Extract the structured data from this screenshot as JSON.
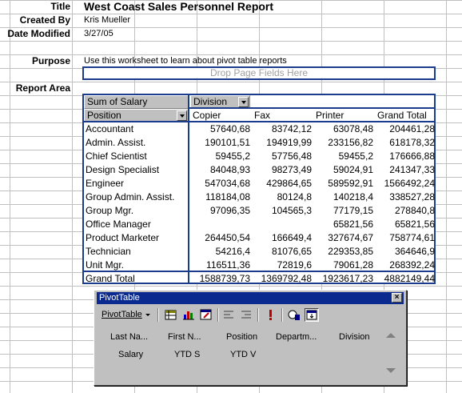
{
  "header": {
    "title_label": "Title",
    "title_value": "West Coast Sales Personnel Report",
    "created_by_label": "Created By",
    "created_by_value": "Kris Mueller",
    "date_modified_label": "Date Modified",
    "date_modified_value": "3/27/05",
    "purpose_label": "Purpose",
    "purpose_value": "Use this worksheet to learn about pivot table reports",
    "report_area_label": "Report Area"
  },
  "pivot": {
    "drop_page_text": "Drop Page Fields Here",
    "data_field": "Sum of Salary",
    "column_field": "Division",
    "row_field": "Position",
    "columns": [
      "Copier",
      "Fax",
      "Printer",
      "Grand Total"
    ],
    "rows": [
      {
        "label": "Accountant",
        "values": [
          "57640,68",
          "83742,12",
          "63078,48",
          "204461,28"
        ]
      },
      {
        "label": "Admin. Assist.",
        "values": [
          "190101,51",
          "194919,99",
          "233156,82",
          "618178,32"
        ]
      },
      {
        "label": "Chief Scientist",
        "values": [
          "59455,2",
          "57756,48",
          "59455,2",
          "176666,88"
        ]
      },
      {
        "label": "Design Specialist",
        "values": [
          "84048,93",
          "98273,49",
          "59024,91",
          "241347,33"
        ]
      },
      {
        "label": "Engineer",
        "values": [
          "547034,68",
          "429864,65",
          "589592,91",
          "1566492,24"
        ]
      },
      {
        "label": "Group Admin. Assist.",
        "values": [
          "118184,08",
          "80124,8",
          "140218,4",
          "338527,28"
        ]
      },
      {
        "label": "Group Mgr.",
        "values": [
          "97096,35",
          "104565,3",
          "77179,15",
          "278840,8"
        ]
      },
      {
        "label": "Office Manager",
        "values": [
          "",
          "",
          "65821,56",
          "65821,56"
        ]
      },
      {
        "label": "Product Marketer",
        "values": [
          "264450,54",
          "166649,4",
          "327674,67",
          "758774,61"
        ]
      },
      {
        "label": "Technician",
        "values": [
          "54216,4",
          "81076,65",
          "229353,85",
          "364646,9"
        ]
      },
      {
        "label": "Unit Mgr.",
        "values": [
          "116511,36",
          "72819,6",
          "79061,28",
          "268392,24"
        ]
      },
      {
        "label": "Grand Total",
        "values": [
          "1588739,73",
          "1369792,48",
          "1923617,23",
          "4882149,44"
        ]
      }
    ]
  },
  "toolbar": {
    "window_title": "PivotTable",
    "close_glyph": "×",
    "menu_label": "PivotTable",
    "field_list_row1": [
      "Last Na...",
      "First N...",
      "Position",
      "Departm...",
      "Division"
    ],
    "field_list_row2": [
      "Salary",
      "YTD S",
      "YTD V"
    ],
    "icons": [
      "format-report-icon",
      "chart-wizard-icon",
      "pivot-wizard-icon",
      "hide-detail-icon",
      "show-detail-icon",
      "refresh-icon",
      "field-settings-icon",
      "show-field-list-icon"
    ]
  },
  "colors": {
    "pivot_border": "#1b3c8d",
    "titlebar": "#0b2a8f",
    "gridline": "#c0c0c0"
  }
}
